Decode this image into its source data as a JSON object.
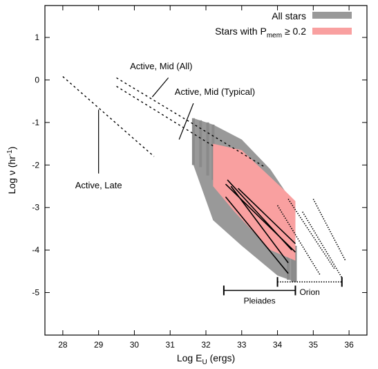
{
  "chart_data": {
    "type": "line",
    "title": "",
    "xlabel": {
      "main": "Log E",
      "sub": "U",
      "tail": " (ergs)"
    },
    "ylabel": {
      "main": "Log ν (hr",
      "sup": "-1",
      "tail": ")"
    },
    "xlim": [
      27.5,
      36.5
    ],
    "ylim": [
      -6,
      1.75
    ],
    "xticks": [
      28,
      29,
      30,
      31,
      32,
      33,
      34,
      35,
      36
    ],
    "yticks": [
      1,
      0,
      -1,
      -2,
      -3,
      -4,
      -5
    ],
    "grid": false,
    "legend_position": "top-right",
    "legend": [
      {
        "label": "All stars",
        "color": "#999999"
      },
      {
        "label_main": "Stars with P",
        "label_sub": "mem",
        "label_tail": " ≥ 0.2",
        "color": "#f9a0a0"
      }
    ],
    "series": [
      {
        "name": "Active, Late",
        "style": "dashed",
        "x": [
          28.0,
          30.55
        ],
        "y": [
          0.08,
          -1.8
        ]
      },
      {
        "name": "Active, Mid (All)",
        "style": "dashed",
        "x": [
          29.5,
          33.65
        ],
        "y": [
          0.05,
          -2.05
        ]
      },
      {
        "name": "Active, Mid (Typical)",
        "style": "dashed",
        "x": [
          29.5,
          32.2
        ],
        "y": [
          -0.15,
          -1.55
        ]
      }
    ],
    "dotted_lines": [
      {
        "x": [
          34.0,
          35.2
        ],
        "y": [
          -2.95,
          -4.6
        ]
      },
      {
        "x": [
          34.3,
          35.6
        ],
        "y": [
          -2.8,
          -4.45
        ]
      },
      {
        "x": [
          34.7,
          35.8
        ],
        "y": [
          -3.1,
          -4.65
        ]
      },
      {
        "x": [
          35.0,
          35.9
        ],
        "y": [
          -2.8,
          -4.25
        ]
      }
    ],
    "solid_lines": [
      {
        "x": [
          32.55,
          34.5
        ],
        "y": [
          -2.45,
          -4.05
        ]
      },
      {
        "x": [
          32.6,
          34.4
        ],
        "y": [
          -2.35,
          -4.0
        ]
      },
      {
        "x": [
          32.7,
          34.3
        ],
        "y": [
          -2.5,
          -4.3
        ]
      },
      {
        "x": [
          32.9,
          34.5
        ],
        "y": [
          -2.55,
          -3.85
        ]
      },
      {
        "x": [
          32.55,
          34.3
        ],
        "y": [
          -2.75,
          -4.55
        ]
      }
    ],
    "all_stars_band": {
      "color": "#999999",
      "x": [
        31.65,
        32.2,
        33.0,
        33.8,
        34.2,
        34.5,
        34.5,
        34.0,
        33.0,
        32.2,
        31.65
      ],
      "y": [
        -0.9,
        -1.05,
        -1.4,
        -2.1,
        -2.6,
        -2.9,
        -4.75,
        -4.6,
        -3.9,
        -3.3,
        -2.0
      ]
    },
    "members_band": {
      "color": "#f9a0a0",
      "x": [
        32.2,
        33.0,
        34.2,
        34.5,
        34.5,
        33.8,
        32.8,
        32.2
      ],
      "y": [
        -1.5,
        -1.65,
        -2.6,
        -2.85,
        -4.25,
        -4.0,
        -3.1,
        -2.5
      ]
    },
    "grey_columns": [
      {
        "x": 31.65,
        "y": [
          -0.9,
          -2.0
        ]
      },
      {
        "x": 31.85,
        "y": [
          -0.95,
          -2.05
        ]
      },
      {
        "x": 32.05,
        "y": [
          -1.0,
          -2.25
        ]
      },
      {
        "x": 32.2,
        "y": [
          -1.05,
          -2.35
        ]
      },
      {
        "x": 34.3,
        "y": [
          -4.0,
          -4.7
        ]
      },
      {
        "x": 34.42,
        "y": [
          -3.95,
          -4.75
        ]
      },
      {
        "x": 34.5,
        "y": [
          -3.9,
          -4.75
        ]
      }
    ],
    "ranges": [
      {
        "label": "Pleiades",
        "x": [
          32.5,
          34.5
        ],
        "y": -4.95,
        "style": "solid"
      },
      {
        "label": "Orion",
        "x": [
          34.0,
          35.8
        ],
        "y": -4.75,
        "style": "dotted"
      }
    ],
    "annotations": [
      {
        "text": "Active, Mid (All)",
        "text_x": 30.75,
        "text_y": 0.25,
        "pointer": [
          [
            30.95,
            0.05
          ],
          [
            30.5,
            -0.4
          ]
        ]
      },
      {
        "text": "Active, Mid (Typical)",
        "text_x": 32.25,
        "text_y": -0.35,
        "pointer": [
          [
            31.65,
            -0.55
          ],
          [
            31.25,
            -1.4
          ]
        ]
      },
      {
        "text": "Active, Late",
        "text_x": 29.0,
        "text_y": -2.55,
        "pointer": [
          [
            29.0,
            -0.7
          ],
          [
            29.0,
            -2.2
          ]
        ]
      }
    ]
  }
}
